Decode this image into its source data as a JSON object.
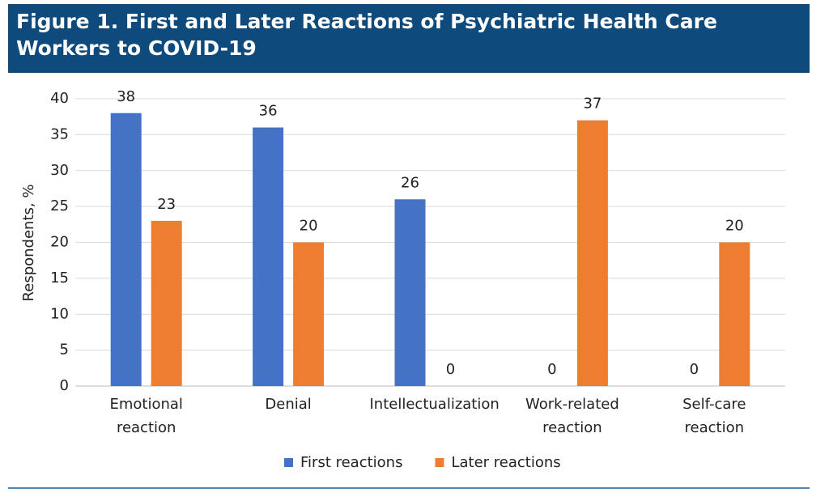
{
  "chart_data": {
    "type": "bar",
    "title": "Figure 1. First and Later Reactions of Psychiatric Health Care Workers to COVID-19",
    "y_label": "Respondents, %",
    "categories": [
      "Emotional reaction",
      "Denial",
      "Intellectualization",
      "Work-related reaction",
      "Self-care reaction"
    ],
    "series": [
      {
        "name": "First reactions",
        "color": "#4472c4",
        "values": [
          38,
          36,
          26,
          0,
          0
        ]
      },
      {
        "name": "Later reactions",
        "color": "#ed7d31",
        "values": [
          23,
          20,
          0,
          37,
          20
        ]
      }
    ],
    "ylim": [
      0,
      40
    ],
    "yticks": [
      0,
      5,
      10,
      15,
      20,
      25,
      30,
      35,
      40
    ],
    "grid": true,
    "legend": "bottom",
    "banner_color": "#0f4a7c"
  }
}
